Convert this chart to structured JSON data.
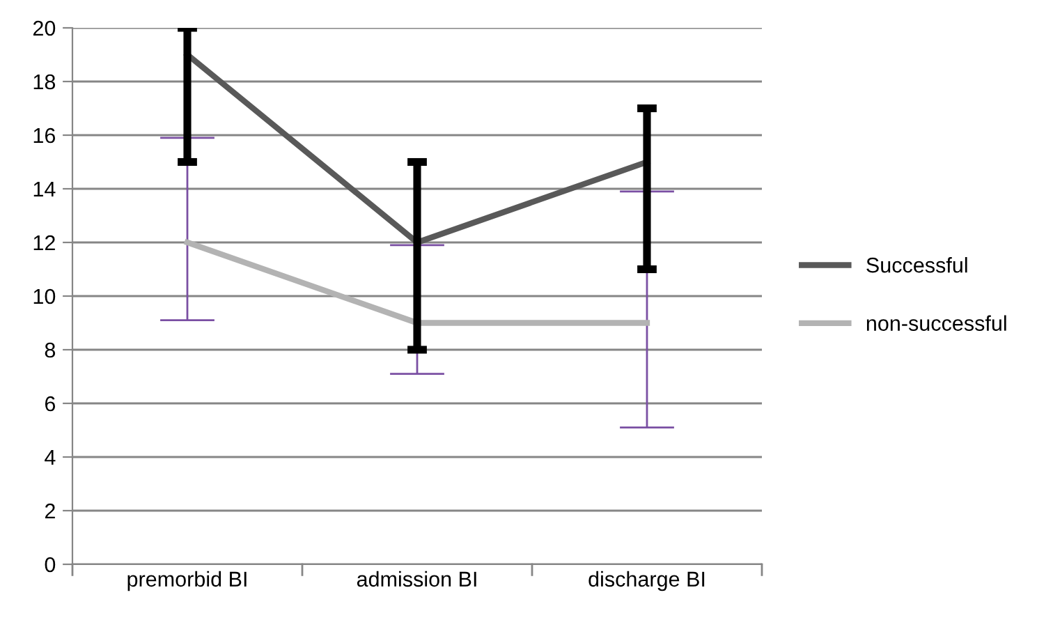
{
  "chart_data": {
    "type": "line",
    "categories": [
      "premorbid BI",
      "admission BI",
      "discharge BI"
    ],
    "series": [
      {
        "name": "Successful",
        "color": "#595959",
        "values": [
          19,
          12,
          15
        ],
        "errors": [
          [
            15,
            20
          ],
          [
            8,
            15
          ],
          [
            11,
            17
          ]
        ]
      },
      {
        "name": "non-successful",
        "color": "#b3b3b3",
        "values": [
          12,
          9,
          9
        ],
        "errors": [
          [
            9.1,
            15.9
          ],
          [
            7.1,
            11.9
          ],
          [
            5.1,
            13.9
          ]
        ]
      }
    ],
    "ylim": [
      0,
      20
    ],
    "yticks": [
      0,
      2,
      4,
      6,
      8,
      10,
      12,
      14,
      16,
      18,
      20
    ],
    "grid": "y",
    "legend": "right",
    "marker": "none",
    "line_style": "solid"
  }
}
